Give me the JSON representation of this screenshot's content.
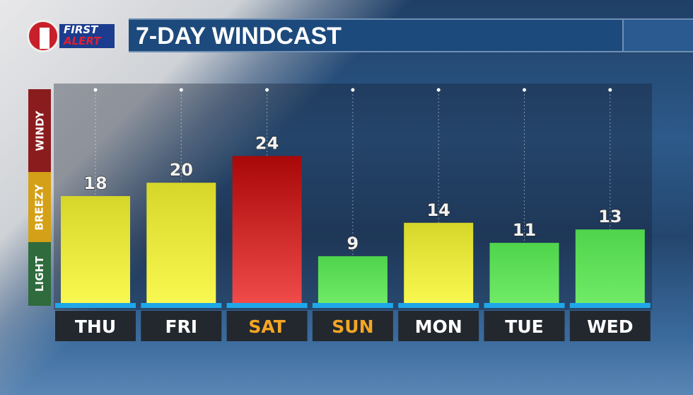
{
  "logo": {
    "line1": "FIRST",
    "line2": "ALERT"
  },
  "title": "7-DAY WINDCAST",
  "legend": [
    {
      "label": "WINDY",
      "color": "#8b1c1e"
    },
    {
      "label": "BREEZY",
      "color": "#d4a017"
    },
    {
      "label": "LIGHT",
      "color": "#2f6b3c"
    }
  ],
  "chart_data": {
    "type": "bar",
    "title": "7-DAY WINDCAST",
    "categories": [
      "THU",
      "FRI",
      "SAT",
      "SUN",
      "MON",
      "TUE",
      "WED"
    ],
    "values": [
      18,
      20,
      24,
      9,
      14,
      11,
      13
    ],
    "bar_colors": [
      "yellow",
      "yellow",
      "red",
      "green",
      "yellow",
      "green",
      "green"
    ],
    "category_label_colors": [
      "#ffffff",
      "#ffffff",
      "#f5a623",
      "#f5a623",
      "#ffffff",
      "#ffffff",
      "#ffffff"
    ],
    "ylim": [
      2,
      34
    ],
    "grid": false
  }
}
